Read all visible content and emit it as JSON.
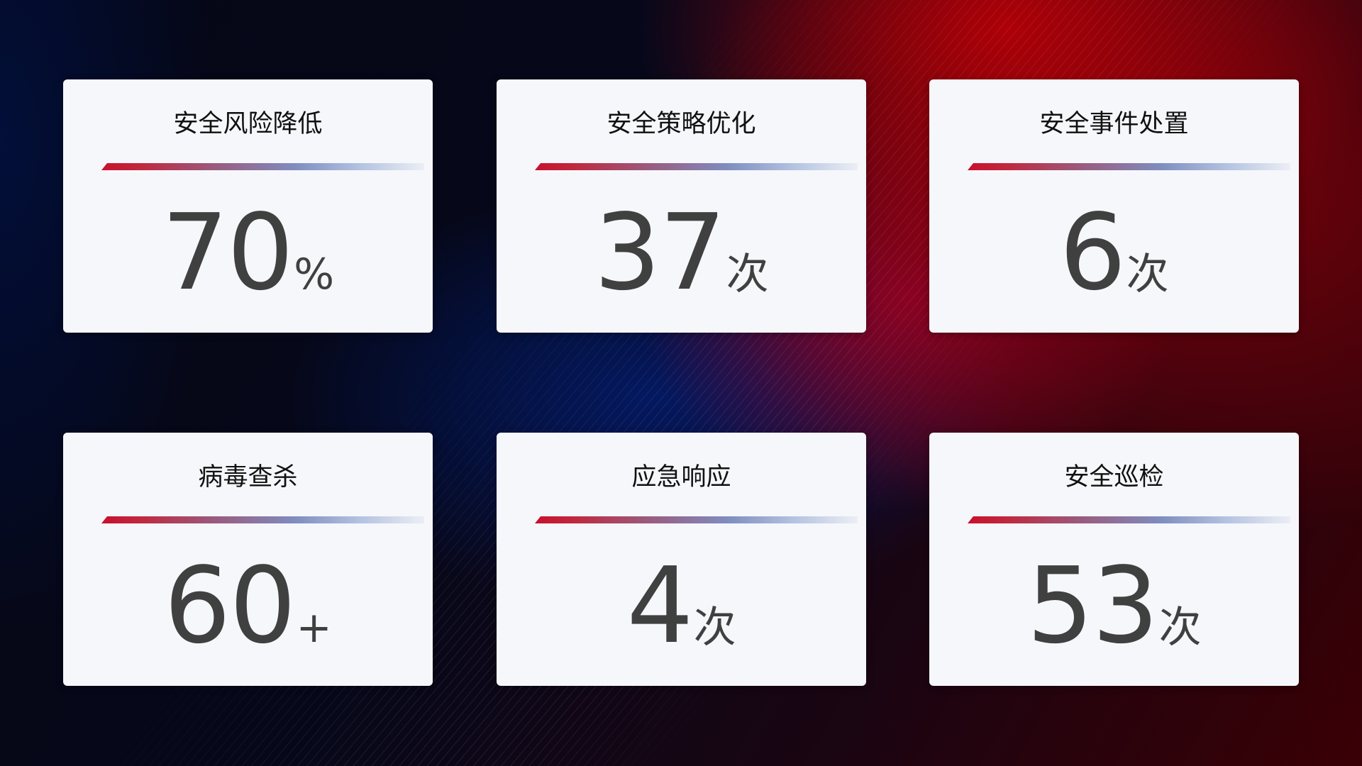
{
  "cards": [
    {
      "title": "安全风险降低",
      "value": "70",
      "unit": "%"
    },
    {
      "title": "安全策略优化",
      "value": "37",
      "unit": "次"
    },
    {
      "title": "安全事件处置",
      "value": "6",
      "unit": "次"
    },
    {
      "title": "病毒查杀",
      "value": "60",
      "unit": "+"
    },
    {
      "title": "应急响应",
      "value": "4",
      "unit": "次"
    },
    {
      "title": "安全巡检",
      "value": "53",
      "unit": "次"
    }
  ],
  "colors": {
    "accent_red": "#c8102e",
    "accent_blue": "#7f8dc0",
    "card_bg": "#f6f7fb",
    "value_text": "#404040"
  }
}
